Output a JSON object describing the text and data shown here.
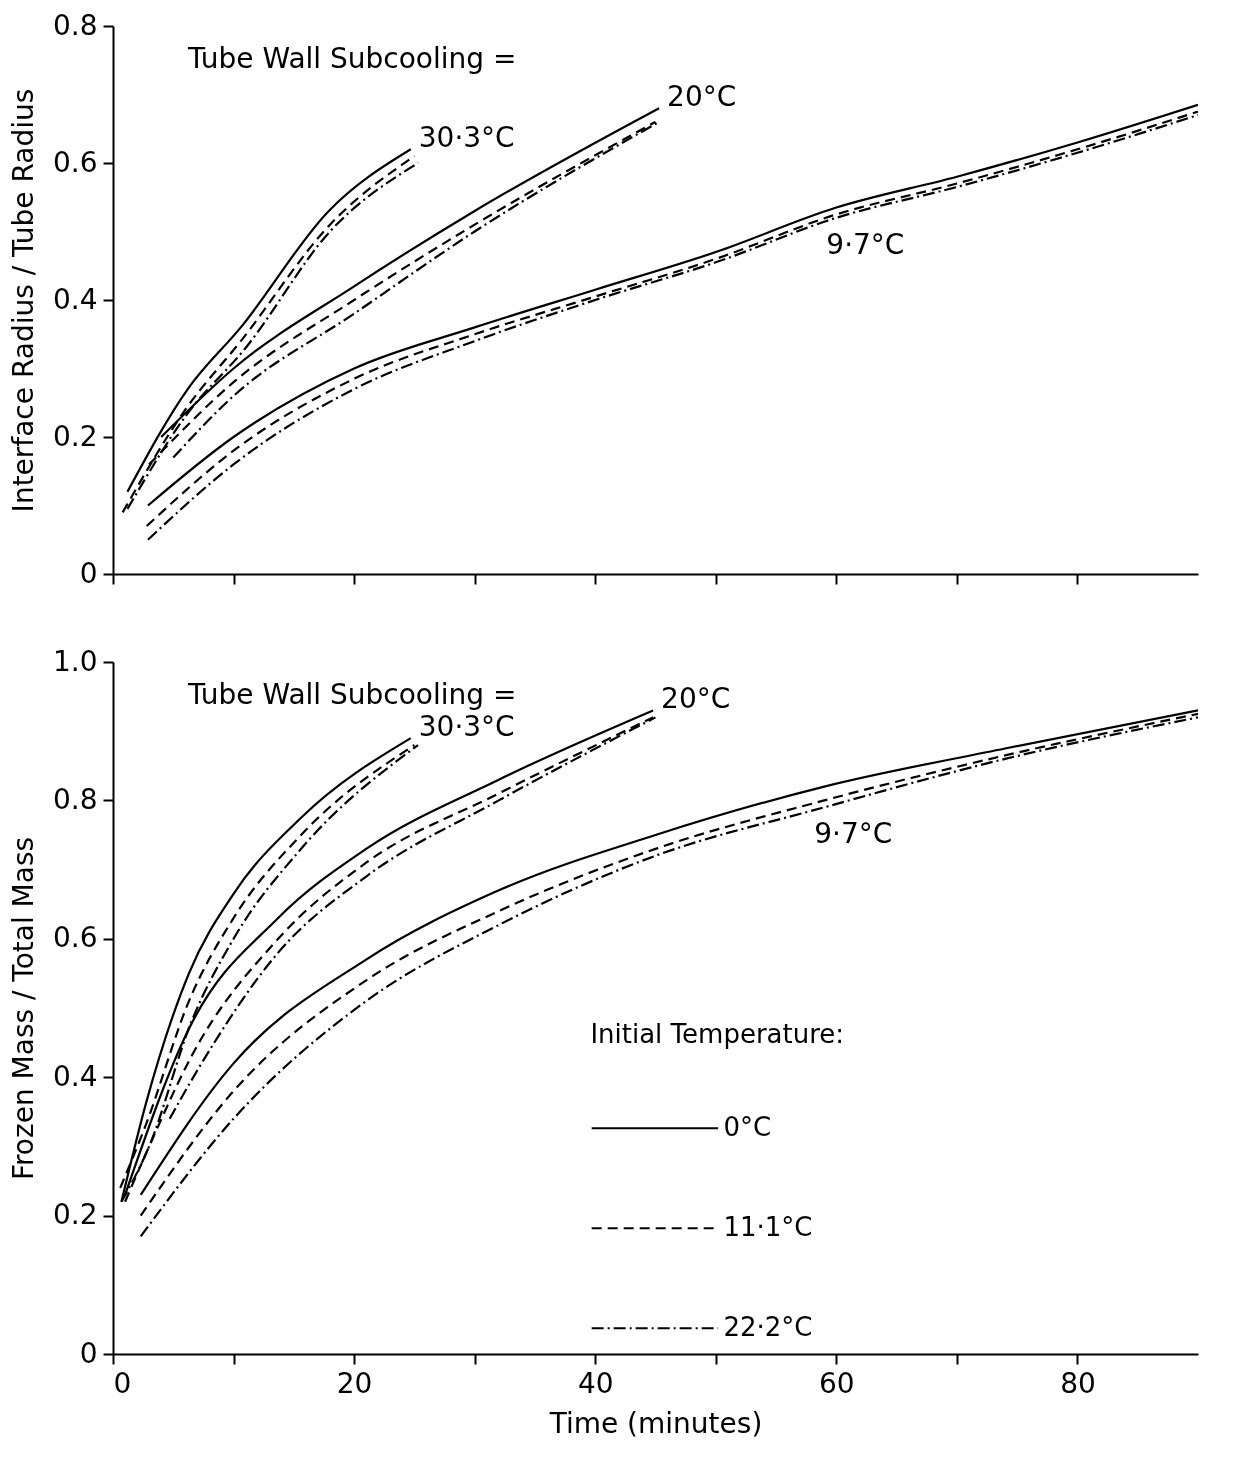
{
  "chart_data": [
    {
      "type": "line",
      "ylabel": "Interface Radius / Tube Radius",
      "xlim": [
        0,
        90
      ],
      "ylim": [
        0,
        0.8
      ],
      "xticks": [
        {
          "value": 0,
          "label": null
        },
        {
          "value": 10,
          "label": null
        },
        {
          "value": 20,
          "label": null
        },
        {
          "value": 30,
          "label": null
        },
        {
          "value": 40,
          "label": null
        },
        {
          "value": 50,
          "label": null
        },
        {
          "value": 60,
          "label": null
        },
        {
          "value": 70,
          "label": null
        },
        {
          "value": 80,
          "label": null
        }
      ],
      "yticks": [
        0,
        0.2,
        0.4,
        0.6,
        0.8
      ],
      "tick_labels": "y",
      "grid": false,
      "marker": "none",
      "annotations": [
        "Tube Wall Subcooling =",
        {
          "text": "30·3°C",
          "x": 24.7,
          "y": 0.62
        },
        {
          "text": "20°C",
          "x": 45.3,
          "y": 0.68
        },
        {
          "text": "9·7°C",
          "x": 60,
          "y": 0.52
        }
      ],
      "series": [
        {
          "color": "#000000",
          "line_style": "solid",
          "x": [
            1.2,
            6.2,
            10.6,
            17.9,
            24.7
          ],
          "values": [
            0.12,
            0.27,
            0.36,
            0.53,
            0.62
          ]
        },
        {
          "color": "#000000",
          "line_style": "dashed",
          "x": [
            0.8,
            6,
            10.6,
            18,
            25
          ],
          "values": [
            0.09,
            0.24,
            0.34,
            0.51,
            0.61
          ]
        },
        {
          "color": "#000000",
          "line_style": "dashdot",
          "x": [
            1.2,
            6,
            11,
            18,
            25.3
          ],
          "values": [
            0.095,
            0.23,
            0.33,
            0.5,
            0.6
          ]
        },
        {
          "color": "#000000",
          "line_style": "solid",
          "x": [
            4,
            10,
            20,
            30,
            45.3
          ],
          "values": [
            0.2,
            0.3,
            0.42,
            0.53,
            0.68
          ]
        },
        {
          "color": "#000000",
          "line_style": "dashed",
          "x": [
            3,
            10,
            20,
            30,
            45
          ],
          "values": [
            0.16,
            0.28,
            0.4,
            0.51,
            0.66
          ]
        },
        {
          "color": "#000000",
          "line_style": "dashdot",
          "x": [
            5,
            10,
            20,
            30,
            45.3
          ],
          "values": [
            0.17,
            0.26,
            0.38,
            0.5,
            0.66
          ]
        },
        {
          "color": "#000000",
          "line_style": "solid",
          "x": [
            2.9,
            10,
            20,
            30,
            40,
            50,
            60,
            70,
            80,
            90
          ],
          "values": [
            0.1,
            0.2,
            0.3,
            0.36,
            0.415,
            0.47,
            0.535,
            0.58,
            0.63,
            0.685
          ]
        },
        {
          "color": "#000000",
          "line_style": "dashed",
          "x": [
            2.8,
            10,
            20,
            30,
            40,
            50,
            60,
            70,
            80,
            90
          ],
          "values": [
            0.07,
            0.18,
            0.285,
            0.35,
            0.405,
            0.46,
            0.525,
            0.57,
            0.62,
            0.675
          ]
        },
        {
          "color": "#000000",
          "line_style": "dashdot",
          "x": [
            2.9,
            10,
            20,
            30,
            40,
            50,
            60,
            70,
            80,
            90
          ],
          "values": [
            0.05,
            0.16,
            0.27,
            0.34,
            0.4,
            0.455,
            0.52,
            0.565,
            0.615,
            0.67
          ]
        }
      ]
    },
    {
      "type": "line",
      "xlabel": "Time (minutes)",
      "ylabel": "Frozen Mass / Total Mass",
      "legend_title": "Initial Temperature:",
      "xlim": [
        0,
        90
      ],
      "ylim": [
        0,
        1
      ],
      "xticks": [
        0,
        {
          "value": 10,
          "label": null
        },
        20,
        {
          "value": 30,
          "label": null
        },
        40,
        {
          "value": 50,
          "label": null
        },
        60,
        {
          "value": 70,
          "label": null
        },
        80
      ],
      "yticks": [
        0,
        0.2,
        0.4,
        0.6,
        0.8,
        {
          "value": 1,
          "label": "1.0"
        }
      ],
      "grid": false,
      "legend": "right",
      "marker": "none",
      "annotations": [
        "Tube Wall Subcooling =",
        {
          "text": "30·3°C",
          "x": 24.7,
          "y": 0.89
        },
        {
          "text": "20°C",
          "x": 44.8,
          "y": 0.93
        },
        {
          "text": "9·7°C",
          "x": 59,
          "y": 0.79
        }
      ],
      "series": [
        {
          "color": "#000000",
          "line_style": "solid",
          "x": [
            0.7,
            2.7,
            6.3,
            10,
            15.6,
            24.7
          ],
          "values": [
            0.22,
            0.36,
            0.55,
            0.665,
            0.775,
            0.89
          ]
        },
        {
          "color": "#000000",
          "line_style": "dashed",
          "x": [
            0.6,
            2.7,
            6.3,
            10,
            15.6,
            25
          ],
          "values": [
            0.24,
            0.33,
            0.51,
            0.63,
            0.75,
            0.88
          ]
        },
        {
          "color": "#000000",
          "line_style": "dashdot",
          "x": [
            0.7,
            3,
            6.5,
            10,
            15.6,
            25.3
          ],
          "values": [
            0.22,
            0.3,
            0.48,
            0.6,
            0.73,
            0.88
          ]
        },
        {
          "color": "#000000",
          "line_style": "solid",
          "x": [
            1,
            6.3,
            13.7,
            21,
            32,
            44.8
          ],
          "values": [
            0.23,
            0.47,
            0.63,
            0.73,
            0.83,
            0.93
          ]
        },
        {
          "color": "#000000",
          "line_style": "dashed",
          "x": [
            1,
            3,
            6.5,
            13.7,
            21,
            32,
            44.8
          ],
          "values": [
            0.22,
            0.3,
            0.43,
            0.6,
            0.71,
            0.81,
            0.92
          ]
        },
        {
          "color": "#000000",
          "line_style": "dashdot",
          "x": [
            4.7,
            7,
            13.7,
            21,
            32,
            45
          ],
          "values": [
            0.34,
            0.41,
            0.58,
            0.69,
            0.8,
            0.92
          ]
        },
        {
          "name": "0°C",
          "color": "#000000",
          "line_style": "solid",
          "x": [
            2.3,
            10,
            21,
            32,
            45,
            59,
            74,
            90
          ],
          "values": [
            0.23,
            0.42,
            0.57,
            0.67,
            0.75,
            0.82,
            0.875,
            0.93
          ]
        },
        {
          "name": "11·1°C",
          "color": "#000000",
          "line_style": "dashed",
          "x": [
            2.3,
            10,
            21,
            32,
            45,
            59,
            74,
            90
          ],
          "values": [
            0.2,
            0.38,
            0.54,
            0.64,
            0.73,
            0.8,
            0.865,
            0.925
          ]
        },
        {
          "name": "22·2°C",
          "color": "#000000",
          "line_style": "dashdot",
          "x": [
            2.3,
            10,
            21,
            32,
            45,
            59,
            74,
            90
          ],
          "values": [
            0.17,
            0.34,
            0.51,
            0.62,
            0.72,
            0.79,
            0.86,
            0.92
          ]
        }
      ]
    }
  ]
}
